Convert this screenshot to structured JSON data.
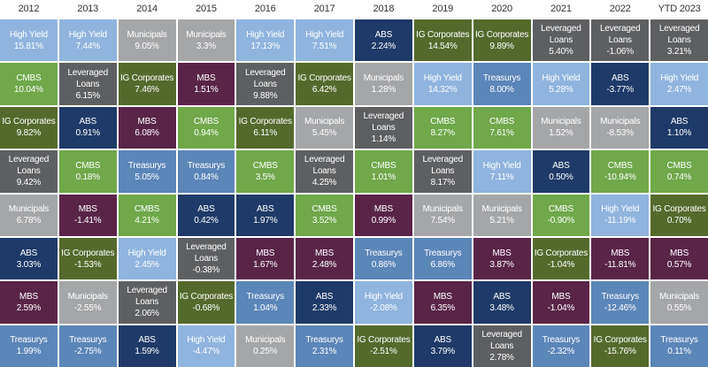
{
  "table": {
    "headers": [
      "2012",
      "2013",
      "2014",
      "2015",
      "2016",
      "2017",
      "2018",
      "2019",
      "2020",
      "2021",
      "2022",
      "YTD 2023"
    ],
    "asset_colors": {
      "High Yield": "#8fb4de",
      "CMBS": "#70a84a",
      "IG Corporates": "#546a2c",
      "Leveraged Loans": "#5e5f61",
      "Municipals": "#a5a6a8",
      "ABS": "#1f3a68",
      "MBS": "#5a2449",
      "Treasurys": "#5b86b8"
    },
    "columns": [
      [
        {
          "name": "High Yield",
          "value": "15.81%"
        },
        {
          "name": "CMBS",
          "value": "10.04%"
        },
        {
          "name": "IG Corporates",
          "value": "9.82%"
        },
        {
          "name": "Leveraged Loans",
          "value": "9.42%"
        },
        {
          "name": "Municipals",
          "value": "6.78%"
        },
        {
          "name": "ABS",
          "value": "3.03%"
        },
        {
          "name": "MBS",
          "value": "2.59%"
        },
        {
          "name": "Treasurys",
          "value": "1.99%"
        }
      ],
      [
        {
          "name": "High Yield",
          "value": "7.44%"
        },
        {
          "name": "Leveraged Loans",
          "value": "6.15%"
        },
        {
          "name": "ABS",
          "value": "0.91%"
        },
        {
          "name": "CMBS",
          "value": "0.18%"
        },
        {
          "name": "MBS",
          "value": "-1.41%"
        },
        {
          "name": "IG Corporates",
          "value": "-1.53%"
        },
        {
          "name": "Municipals",
          "value": "-2.55%"
        },
        {
          "name": "Treasurys",
          "value": "-2.75%"
        }
      ],
      [
        {
          "name": "Municipals",
          "value": "9.05%"
        },
        {
          "name": "IG Corporates",
          "value": "7.46%"
        },
        {
          "name": "MBS",
          "value": "6.08%"
        },
        {
          "name": "Treasurys",
          "value": "5.05%"
        },
        {
          "name": "CMBS",
          "value": "4.21%"
        },
        {
          "name": "High Yield",
          "value": "2.45%"
        },
        {
          "name": "Leveraged Loans",
          "value": "2.06%"
        },
        {
          "name": "ABS",
          "value": "1.59%"
        }
      ],
      [
        {
          "name": "Municipals",
          "value": "3.3%"
        },
        {
          "name": "MBS",
          "value": "1.51%"
        },
        {
          "name": "CMBS",
          "value": "0.94%"
        },
        {
          "name": "Treasurys",
          "value": "0.84%"
        },
        {
          "name": "ABS",
          "value": "0.42%"
        },
        {
          "name": "Leveraged Loans",
          "value": "-0.38%"
        },
        {
          "name": "IG Corporates",
          "value": "-0.68%"
        },
        {
          "name": "High Yield",
          "value": "-4.47%"
        }
      ],
      [
        {
          "name": "High Yield",
          "value": "17.13%"
        },
        {
          "name": "Leveraged Loans",
          "value": "9.88%"
        },
        {
          "name": "IG Corporates",
          "value": "6.11%"
        },
        {
          "name": "CMBS",
          "value": "3.5%"
        },
        {
          "name": "ABS",
          "value": "1.97%"
        },
        {
          "name": "MBS",
          "value": "1.67%"
        },
        {
          "name": "Treasurys",
          "value": "1.04%"
        },
        {
          "name": "Municipals",
          "value": "0.25%"
        }
      ],
      [
        {
          "name": "High Yield",
          "value": "7.51%"
        },
        {
          "name": "IG Corporates",
          "value": "6.42%"
        },
        {
          "name": "Municipals",
          "value": "5.45%"
        },
        {
          "name": "Leveraged Loans",
          "value": "4.25%"
        },
        {
          "name": "CMBS",
          "value": "3.52%"
        },
        {
          "name": "MBS",
          "value": "2.48%"
        },
        {
          "name": "ABS",
          "value": "2.33%"
        },
        {
          "name": "Treasurys",
          "value": "2.31%"
        }
      ],
      [
        {
          "name": "ABS",
          "value": "2.24%"
        },
        {
          "name": "Municipals",
          "value": "1.28%"
        },
        {
          "name": "Leveraged Loans",
          "value": "1.14%"
        },
        {
          "name": "CMBS",
          "value": "1.01%"
        },
        {
          "name": "MBS",
          "value": "0.99%"
        },
        {
          "name": "Treasurys",
          "value": "0.86%"
        },
        {
          "name": "High Yield",
          "value": "-2.08%"
        },
        {
          "name": "IG Corporates",
          "value": "-2.51%"
        }
      ],
      [
        {
          "name": "IG Corporates",
          "value": "14.54%"
        },
        {
          "name": "High Yield",
          "value": "14.32%"
        },
        {
          "name": "CMBS",
          "value": "8.27%"
        },
        {
          "name": "Leveraged Loans",
          "value": "8.17%"
        },
        {
          "name": "Municipals",
          "value": "7.54%"
        },
        {
          "name": "Treasurys",
          "value": "6.86%"
        },
        {
          "name": "MBS",
          "value": "6.35%"
        },
        {
          "name": "ABS",
          "value": "3.79%"
        }
      ],
      [
        {
          "name": "IG Corporates",
          "value": "9.89%"
        },
        {
          "name": "Treasurys",
          "value": "8.00%"
        },
        {
          "name": "CMBS",
          "value": "7.61%"
        },
        {
          "name": "High Yield",
          "value": "7.11%"
        },
        {
          "name": "Municipals",
          "value": "5.21%"
        },
        {
          "name": "MBS",
          "value": "3.87%"
        },
        {
          "name": "ABS",
          "value": "3.48%"
        },
        {
          "name": "Leveraged Loans",
          "value": "2.78%"
        }
      ],
      [
        {
          "name": "Leveraged Loans",
          "value": "5.40%"
        },
        {
          "name": "High Yield",
          "value": "5.28%"
        },
        {
          "name": "Municipals",
          "value": "1.52%"
        },
        {
          "name": "ABS",
          "value": "0.50%"
        },
        {
          "name": "CMBS",
          "value": "-0.90%"
        },
        {
          "name": "IG Corporates",
          "value": "-1.04%"
        },
        {
          "name": "MBS",
          "value": "-1.04%"
        },
        {
          "name": "Treasurys",
          "value": "-2.32%"
        }
      ],
      [
        {
          "name": "Leveraged Loans",
          "value": "-1.06%"
        },
        {
          "name": "ABS",
          "value": "-3.77%"
        },
        {
          "name": "Municipals",
          "value": "-8.53%"
        },
        {
          "name": "CMBS",
          "value": "-10.94%"
        },
        {
          "name": "High Yield",
          "value": "-11.19%"
        },
        {
          "name": "MBS",
          "value": "-11.81%"
        },
        {
          "name": "Treasurys",
          "value": "-12.46%"
        },
        {
          "name": "IG Corporates",
          "value": "-15.76%"
        }
      ],
      [
        {
          "name": "Leveraged Loans",
          "value": "3.21%"
        },
        {
          "name": "High Yield",
          "value": "2.47%"
        },
        {
          "name": "ABS",
          "value": "1.10%"
        },
        {
          "name": "CMBS",
          "value": "0.74%"
        },
        {
          "name": "IG Corporates",
          "value": "0.70%"
        },
        {
          "name": "MBS",
          "value": "0.57%"
        },
        {
          "name": "Municipals",
          "value": "0.55%"
        },
        {
          "name": "Treasurys",
          "value": "0.11%"
        }
      ]
    ]
  }
}
